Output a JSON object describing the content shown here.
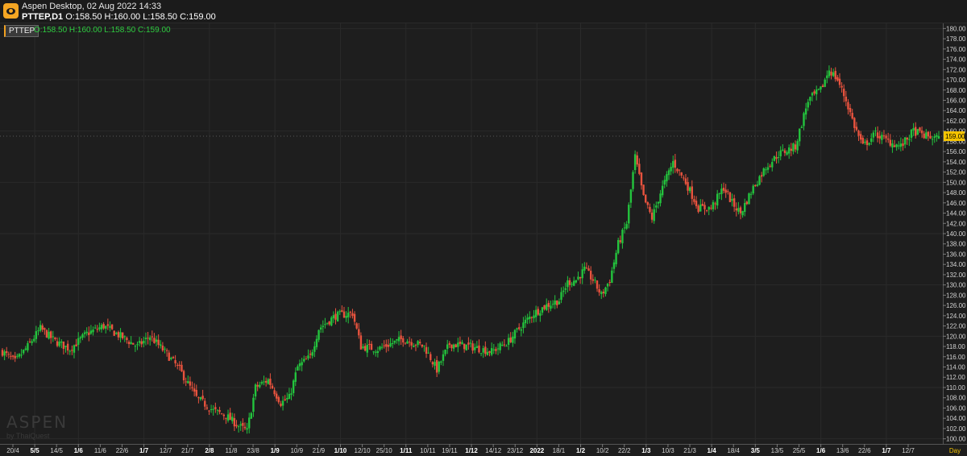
{
  "window": {
    "title": "Aspen Desktop, 02 Aug 2022 14:33",
    "symbol_tf": "PTTEP,D1",
    "ohlc": "O:158.50 H:160.00 L:158.50 C:159.00"
  },
  "legend": {
    "symbol": "PTTEP",
    "ohlc": "O:158.50  H:160.00  L:158.50  C:159.00"
  },
  "watermark": {
    "brand": "ASPEN",
    "by": "by ThaiQuest"
  },
  "colors": {
    "up": "#23c43d",
    "down": "#e8533e",
    "grid": "#2a2a2a",
    "price_tag": "#f5c400",
    "axis_text": "#d0d0d0"
  },
  "chart_data": {
    "type": "candlestick",
    "symbol": "PTTEP",
    "timeframe": "D1",
    "last_price": "159.00",
    "ylim": [
      99,
      181
    ],
    "y_ticks": [
      "180.00",
      "178.00",
      "176.00",
      "174.00",
      "172.00",
      "170.00",
      "168.00",
      "166.00",
      "164.00",
      "162.00",
      "160.00",
      "158.00",
      "156.00",
      "154.00",
      "152.00",
      "150.00",
      "148.00",
      "146.00",
      "144.00",
      "142.00",
      "140.00",
      "138.00",
      "136.00",
      "134.00",
      "132.00",
      "130.00",
      "128.00",
      "126.00",
      "124.00",
      "122.00",
      "120.00",
      "118.00",
      "116.00",
      "114.00",
      "112.00",
      "110.00",
      "108.00",
      "106.00",
      "104.00",
      "102.00",
      "100.00"
    ],
    "x_ticks": [
      {
        "label": "20/4",
        "bold": false
      },
      {
        "label": "5/5",
        "bold": true
      },
      {
        "label": "14/5",
        "bold": false
      },
      {
        "label": "1/6",
        "bold": true
      },
      {
        "label": "11/6",
        "bold": false
      },
      {
        "label": "22/6",
        "bold": false
      },
      {
        "label": "1/7",
        "bold": true
      },
      {
        "label": "12/7",
        "bold": false
      },
      {
        "label": "21/7",
        "bold": false
      },
      {
        "label": "2/8",
        "bold": true
      },
      {
        "label": "11/8",
        "bold": false
      },
      {
        "label": "23/8",
        "bold": false
      },
      {
        "label": "1/9",
        "bold": true
      },
      {
        "label": "10/9",
        "bold": false
      },
      {
        "label": "21/9",
        "bold": false
      },
      {
        "label": "1/10",
        "bold": true
      },
      {
        "label": "12/10",
        "bold": false
      },
      {
        "label": "25/10",
        "bold": false
      },
      {
        "label": "1/11",
        "bold": true
      },
      {
        "label": "10/11",
        "bold": false
      },
      {
        "label": "19/11",
        "bold": false
      },
      {
        "label": "1/12",
        "bold": true
      },
      {
        "label": "14/12",
        "bold": false
      },
      {
        "label": "23/12",
        "bold": false
      },
      {
        "label": "2022",
        "bold": true
      },
      {
        "label": "18/1",
        "bold": false
      },
      {
        "label": "1/2",
        "bold": true
      },
      {
        "label": "10/2",
        "bold": false
      },
      {
        "label": "22/2",
        "bold": false
      },
      {
        "label": "1/3",
        "bold": true
      },
      {
        "label": "10/3",
        "bold": false
      },
      {
        "label": "21/3",
        "bold": false
      },
      {
        "label": "1/4",
        "bold": true
      },
      {
        "label": "18/4",
        "bold": false
      },
      {
        "label": "3/5",
        "bold": true
      },
      {
        "label": "13/5",
        "bold": false
      },
      {
        "label": "25/5",
        "bold": false
      },
      {
        "label": "1/6",
        "bold": true
      },
      {
        "label": "13/6",
        "bold": false
      },
      {
        "label": "22/6",
        "bold": false
      },
      {
        "label": "1/7",
        "bold": true
      },
      {
        "label": "12/7",
        "bold": false
      }
    ],
    "timeframe_label": "Day",
    "anchors": [
      [
        0,
        117
      ],
      [
        6,
        115
      ],
      [
        12,
        118
      ],
      [
        18,
        121.5
      ],
      [
        25,
        119
      ],
      [
        32,
        117.5
      ],
      [
        40,
        120.5
      ],
      [
        48,
        122
      ],
      [
        56,
        120
      ],
      [
        64,
        118
      ],
      [
        70,
        120
      ],
      [
        78,
        116.5
      ],
      [
        84,
        113.5
      ],
      [
        92,
        108
      ],
      [
        100,
        105.5
      ],
      [
        106,
        104.5
      ],
      [
        112,
        102.5
      ],
      [
        116,
        101.5
      ],
      [
        120,
        110
      ],
      [
        126,
        111.5
      ],
      [
        132,
        107
      ],
      [
        136,
        108
      ],
      [
        140,
        114
      ],
      [
        146,
        116
      ],
      [
        150,
        121.5
      ],
      [
        158,
        124
      ],
      [
        166,
        124.5
      ],
      [
        170,
        118
      ],
      [
        178,
        117.5
      ],
      [
        190,
        119.5
      ],
      [
        200,
        118
      ],
      [
        206,
        113.5
      ],
      [
        212,
        118.5
      ],
      [
        222,
        118
      ],
      [
        232,
        117
      ],
      [
        240,
        119
      ],
      [
        246,
        122
      ],
      [
        252,
        124.5
      ],
      [
        258,
        126
      ],
      [
        264,
        127
      ],
      [
        268,
        130.5
      ],
      [
        272,
        131
      ],
      [
        276,
        133
      ],
      [
        280,
        131
      ],
      [
        284,
        128
      ],
      [
        288,
        131
      ],
      [
        292,
        138
      ],
      [
        296,
        142
      ],
      [
        300,
        155
      ],
      [
        304,
        147
      ],
      [
        308,
        143
      ],
      [
        312,
        148
      ],
      [
        318,
        154
      ],
      [
        324,
        150
      ],
      [
        330,
        145
      ],
      [
        336,
        145
      ],
      [
        342,
        149
      ],
      [
        346,
        146
      ],
      [
        350,
        144
      ],
      [
        356,
        149
      ],
      [
        362,
        153
      ],
      [
        368,
        155.5
      ],
      [
        376,
        157
      ],
      [
        382,
        166
      ],
      [
        388,
        168
      ],
      [
        392,
        172
      ],
      [
        396,
        170
      ],
      [
        400,
        166
      ],
      [
        404,
        161
      ],
      [
        408,
        157
      ],
      [
        414,
        159.5
      ],
      [
        420,
        158
      ],
      [
        426,
        157
      ],
      [
        432,
        160
      ],
      [
        438,
        159
      ],
      [
        444,
        158.5
      ]
    ]
  }
}
